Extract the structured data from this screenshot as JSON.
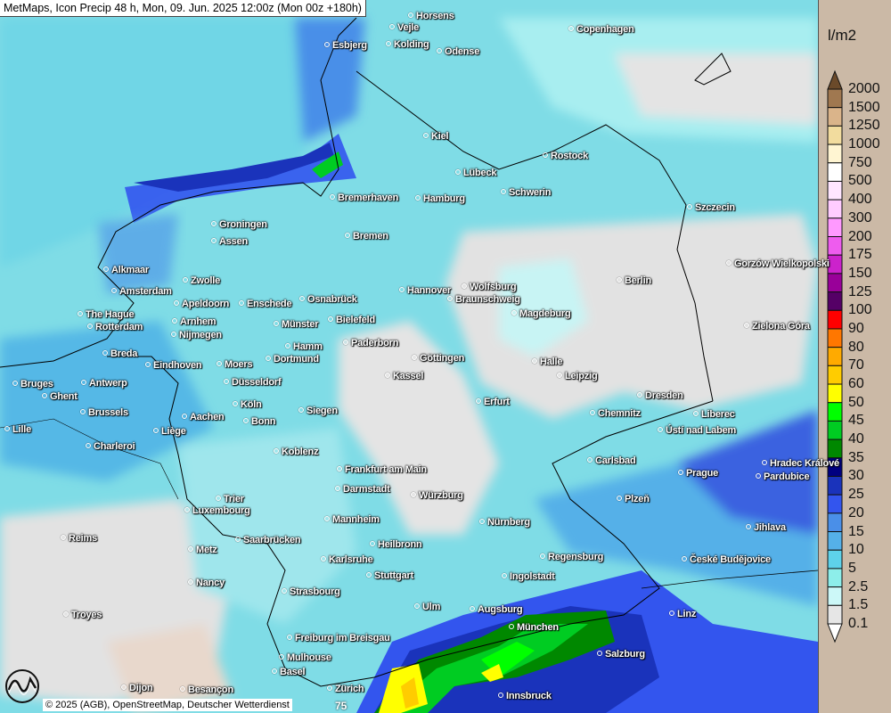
{
  "title": "MetMaps, Icon Precip 48 h, Mon, 09. Jun. 2025 12:00z (Mon 00z +180h)",
  "copyright": "© 2025 (AGB), OpenStreetMap, Deutscher Wetterdienst",
  "logo_text": "METMAPS",
  "contour_label": "75",
  "legend": {
    "unit": "l/m2",
    "labels": [
      "2000",
      "1500",
      "1250",
      "1000",
      "750",
      "500",
      "400",
      "300",
      "200",
      "175",
      "150",
      "125",
      "100",
      "90",
      "80",
      "70",
      "60",
      "50",
      "45",
      "40",
      "35",
      "30",
      "25",
      "20",
      "15",
      "10",
      "5",
      "2.5",
      "1.5",
      "0.1"
    ],
    "colors": [
      "#a07850",
      "#dab48a",
      "#f2dc9e",
      "#fff5d2",
      "#ffffff",
      "#ffe6ff",
      "#ffccff",
      "#ff99ff",
      "#ee5cee",
      "#cc22cc",
      "#990099",
      "#550066",
      "#ff0000",
      "#ff7700",
      "#ffaa00",
      "#ffcc00",
      "#ffff00",
      "#00ff00",
      "#00cc22",
      "#008800",
      "#000080",
      "#1a33bb",
      "#3355ee",
      "#4a8fe8",
      "#55b0e8",
      "#5ed2ea",
      "#8deeea",
      "#ccf8f8",
      "#e6e6e6"
    ],
    "above_max_color": "#6b4a2a",
    "below_min_color": "#ffffff"
  },
  "cities": [
    "Horsens",
    "Vejle",
    "Kolding",
    "Esbjerg",
    "Odense",
    "Copenhagen",
    "Kiel",
    "Rostock",
    "Lübeck",
    "Schwerin",
    "Bremerhaven",
    "Hamburg",
    "Szczecin",
    "Groningen",
    "Bremen",
    "Assen",
    "Alkmaar",
    "Zwolle",
    "Berlin",
    "Gorzów Wielkopolski",
    "Amsterdam",
    "Osnabrück",
    "Hannover",
    "Wolfsburg",
    "Apeldoorn",
    "Enschede",
    "Braunschweig",
    "The Hague",
    "Bielefeld",
    "Magdeburg",
    "Arnhem",
    "Münster",
    "Zielona Góra",
    "Rotterdam",
    "Nijmegen",
    "Hamm",
    "Paderborn",
    "Breda",
    "Dortmund",
    "Göttingen",
    "Halle",
    "Eindhoven",
    "Moers",
    "Leipzig",
    "Kassel",
    "Bruges",
    "Antwerp",
    "Düsseldorf",
    "Ghent",
    "Dresden",
    "Erfurt",
    "Köln",
    "Siegen",
    "Brussels",
    "Chemnitz",
    "Aachen",
    "Bonn",
    "Liberec",
    "Ústí nad Labem",
    "Lille",
    "Liège",
    "Charleroi",
    "Koblenz",
    "Hradec Králové",
    "Carlsbad",
    "Frankfurt am Main",
    "Prague",
    "Pardubice",
    "Darmstadt",
    "Würzburg",
    "Plzeň",
    "Trier",
    "Luxembourg",
    "Mannheim",
    "Nürnberg",
    "Jihlava",
    "Reims",
    "Saarbrücken",
    "Heilbronn",
    "Metz",
    "Regensburg",
    "Karlsruhe",
    "České Budějovice",
    "Stuttgart",
    "Ingolstadt",
    "Nancy",
    "Strasbourg",
    "Ulm",
    "Augsburg",
    "Troyes",
    "Linz",
    "München",
    "Freiburg im Breisgau",
    "Salzburg",
    "Mulhouse",
    "Basel",
    "Zürich",
    "Innsbruck",
    "Dijon",
    "Besançon"
  ]
}
